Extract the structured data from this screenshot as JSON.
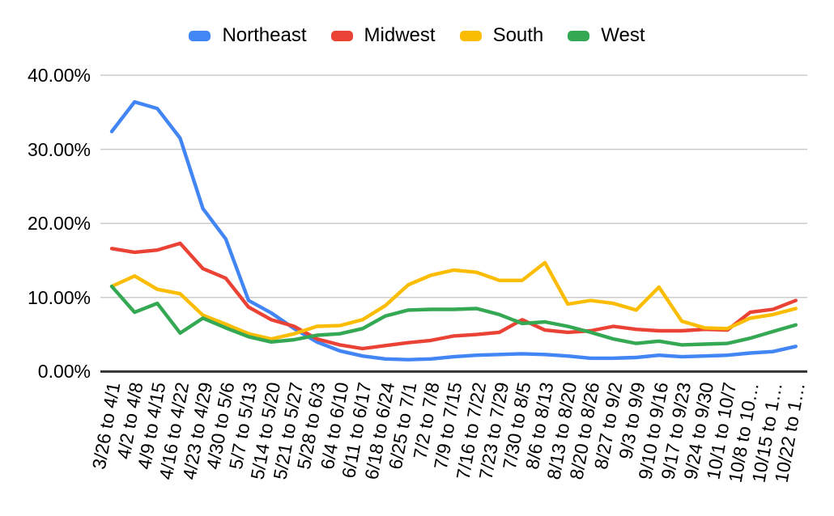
{
  "chart_data": {
    "type": "line",
    "title": "",
    "xlabel": "",
    "ylabel": "",
    "legend_position": "top",
    "gridlines": true,
    "background_color": "#ffffff",
    "gridline_color": "#cccccc",
    "axis_line_color": "#333333",
    "text_color": "#000000",
    "y_axis": {
      "min": 0,
      "max": 40,
      "format": "percent",
      "ticks": [
        {
          "label": "40.00%",
          "value": 40
        },
        {
          "label": "30.00%",
          "value": 30
        },
        {
          "label": "20.00%",
          "value": 20
        },
        {
          "label": "10.00%",
          "value": 10
        },
        {
          "label": "0.00%",
          "value": 0
        }
      ]
    },
    "categories": [
      "3/26 to 4/1",
      "4/2 to 4/8",
      "4/9 to 4/15",
      "4/16 to 4/22",
      "4/23 to 4/29",
      "4/30 to 5/6",
      "5/7 to 5/13",
      "5/14 to 5/20",
      "5/21 to 5/27",
      "5/28 to 6/3",
      "6/4 to 6/10",
      "6/11 to 6/17",
      "6/18 to 6/24",
      "6/25 to 7/1",
      "7/2 to 7/8",
      "7/9 to 7/15",
      "7/16 to 7/22",
      "7/23 to 7/29",
      "7/30 to 8/5",
      "8/6 to 8/13",
      "8/13 to 8/20",
      "8/20 to 8/26",
      "8/27 to 9/2",
      "9/3 to 9/9",
      "9/10 to 9/16",
      "9/17 to 9/23",
      "9/24 to 9/30",
      "10/1 to 10/7",
      "10/8 to 10…",
      "10/15 to 1…",
      "10/22 to 1…"
    ],
    "series": [
      {
        "name": "Northeast",
        "color": "#4285F4",
        "values": [
          32.4,
          36.4,
          35.5,
          31.5,
          22.0,
          17.9,
          9.6,
          7.9,
          5.8,
          4.0,
          2.8,
          2.1,
          1.7,
          1.6,
          1.7,
          2.0,
          2.2,
          2.3,
          2.4,
          2.3,
          2.1,
          1.8,
          1.8,
          1.9,
          2.2,
          2.0,
          2.1,
          2.2,
          2.5,
          2.7,
          3.4
        ]
      },
      {
        "name": "Midwest",
        "color": "#EA4335",
        "values": [
          16.6,
          16.1,
          16.4,
          17.3,
          13.9,
          12.6,
          8.7,
          7.0,
          6.1,
          4.4,
          3.6,
          3.1,
          3.5,
          3.9,
          4.2,
          4.8,
          5.0,
          5.3,
          7.0,
          5.6,
          5.3,
          5.5,
          6.1,
          5.7,
          5.5,
          5.5,
          5.7,
          5.6,
          8.0,
          8.4,
          9.6
        ]
      },
      {
        "name": "South",
        "color": "#FBBC04",
        "values": [
          11.5,
          12.9,
          11.1,
          10.5,
          7.6,
          6.4,
          5.1,
          4.4,
          5.1,
          6.1,
          6.2,
          7.0,
          8.9,
          11.7,
          13.0,
          13.7,
          13.4,
          12.3,
          12.3,
          14.7,
          9.1,
          9.6,
          9.2,
          8.3,
          11.4,
          6.8,
          5.9,
          5.8,
          7.2,
          7.7,
          8.5
        ]
      },
      {
        "name": "West",
        "color": "#34A853",
        "values": [
          11.5,
          8.0,
          9.2,
          5.2,
          7.2,
          5.9,
          4.7,
          4.0,
          4.3,
          4.9,
          5.1,
          5.8,
          7.5,
          8.3,
          8.4,
          8.4,
          8.5,
          7.7,
          6.5,
          6.7,
          6.1,
          5.3,
          4.4,
          3.8,
          4.1,
          3.6,
          3.7,
          3.8,
          4.5,
          5.4,
          6.3
        ]
      }
    ]
  }
}
